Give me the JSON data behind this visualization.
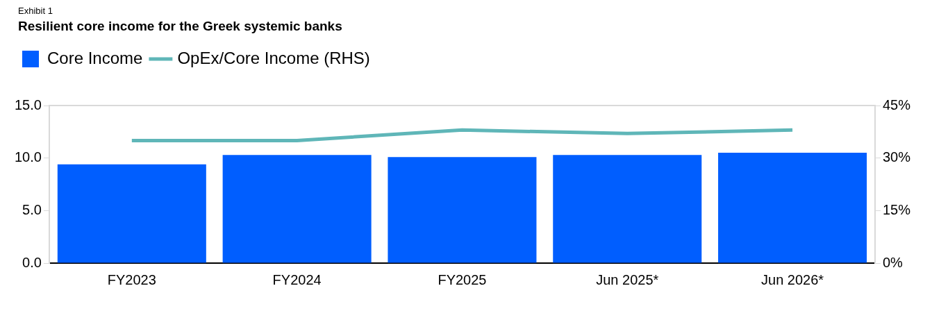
{
  "chart_data": {
    "type": "bar",
    "subtitle": "Exhibit 1",
    "title": "Resilient core income for the Greek systemic banks",
    "categories": [
      "FY2023",
      "FY2024",
      "FY2025",
      "Jun 2025*",
      "Jun 2026*"
    ],
    "series": [
      {
        "name": "Core Income",
        "color": "#005eff",
        "values": [
          9.4,
          10.3,
          10.1,
          10.3,
          10.5
        ]
      },
      {
        "name": "OpEx/Core Income (RHS)",
        "type": "line",
        "axis": "y2",
        "color": "#5fb6b8",
        "values": [
          35,
          35,
          38,
          37,
          38
        ]
      }
    ],
    "ylim": [
      0,
      15
    ],
    "yticks": [
      {
        "value": 0,
        "label": "0.0"
      },
      {
        "value": 5,
        "label": "5.0"
      },
      {
        "value": 10,
        "label": "10.0"
      },
      {
        "value": 15,
        "label": "15.0"
      }
    ],
    "y2lim": [
      0,
      45
    ],
    "y2ticks": [
      {
        "value": 0,
        "label": "0%"
      },
      {
        "value": 15,
        "label": "15%"
      },
      {
        "value": 30,
        "label": "30%"
      },
      {
        "value": 45,
        "label": "45%"
      }
    ],
    "grid": false,
    "legend": "top left",
    "marker": "none"
  }
}
